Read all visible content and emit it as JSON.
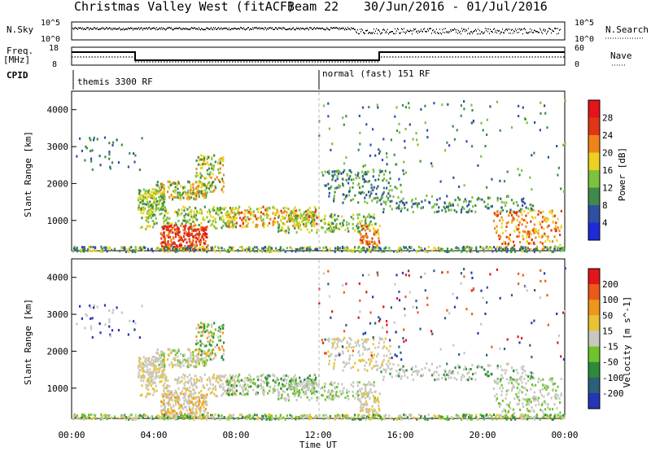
{
  "header": {
    "title": "Christmas Valley West (fitACF)",
    "beam": "Beam 22",
    "date_range": "30/Jun/2016 - 01/Jul/2016"
  },
  "top_panels": {
    "nsky_label": "N.Sky",
    "nsky_ticks": [
      "10^5",
      "10^0"
    ],
    "nsearch_label": "N.Search",
    "nsearch_ticks": [
      "10^5",
      "10^0"
    ],
    "freq_label_line1": "Freq.",
    "freq_label_line2": "[MHz]",
    "freq_ticks": [
      "18",
      "8"
    ],
    "nave_label": "Nave",
    "nave_ticks": [
      "60",
      "0"
    ],
    "cpid_label": "CPID",
    "cpid_segments": [
      {
        "name": "themis 3300 RF"
      },
      {
        "name": "normal (fast) 151 RF"
      }
    ]
  },
  "chart_data": [
    {
      "type": "heatmap",
      "quantity": "Power",
      "colorbar_label": "Power [dB]",
      "colorbar_ticks": [
        4,
        8,
        12,
        16,
        20,
        24,
        28
      ],
      "colorbar_colors": [
        "#1e2bd6",
        "#2f50a2",
        "#3f8a4a",
        "#7cc23e",
        "#ecd21f",
        "#f08419",
        "#e03616",
        "#e5131a"
      ],
      "ylabel": "Slant Range [km]",
      "y_ticks": [
        1000,
        2000,
        3000,
        4000
      ],
      "ylim": [
        180,
        4500
      ],
      "xlim": [
        0,
        24
      ]
    },
    {
      "type": "heatmap",
      "quantity": "Velocity",
      "colorbar_label": "Velocity [m s^-1]",
      "colorbar_ticks": [
        200,
        100,
        50,
        15,
        -15,
        -50,
        -100,
        -200
      ],
      "colorbar_colors": [
        "#2236b6",
        "#2c5f7a",
        "#2e8a3a",
        "#6ec42c",
        "#c8c8c0",
        "#e8c233",
        "#f0951c",
        "#ec5a18",
        "#e2161a"
      ],
      "ylabel": "Slant Range [km]",
      "y_ticks": [
        1000,
        2000,
        3000,
        4000
      ],
      "ylim": [
        180,
        4500
      ],
      "xlim": [
        0,
        24
      ]
    }
  ],
  "x_axis": {
    "ticks": [
      "00:00",
      "04:00",
      "08:00",
      "12:00",
      "16:00",
      "20:00",
      "00:00"
    ],
    "label": "Time UT"
  }
}
